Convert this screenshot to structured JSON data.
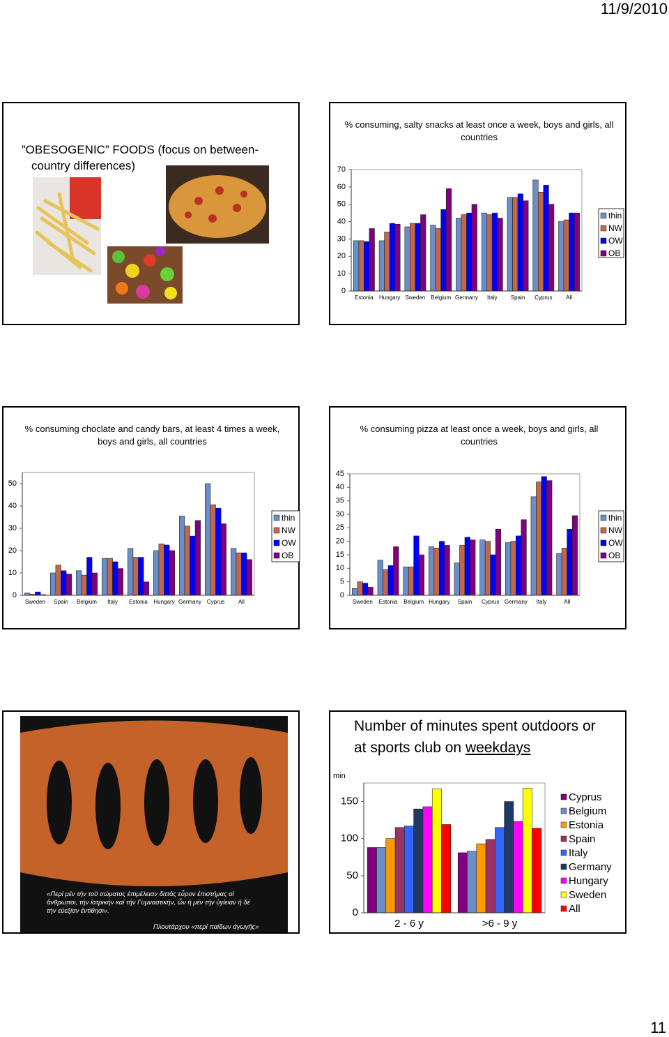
{
  "date": "11/9/2010",
  "page_number": "11",
  "slides": [
    {
      "title": "”OBESOGENIC” FOODS (focus on between-country differences)"
    },
    {
      "caption": "«Περί μέν τήν τοῦ σώματος ἐπιμέλειαν διττάς εὗρον ἐπιστήμας οἱ ἄνθρωποι, τήν ἰατρικήν καί τήν Γυμναστικήν, ὧν ἡ μέν τήν ὑγίειαν ἡ δέ τήν εὐεξίαν ἐντίθησι».",
      "source": "Πλουτάρχου «περί παίδων ἀγωγῆς»"
    }
  ],
  "chart_data": [
    {
      "type": "bar",
      "title": "% consuming, salty snacks at least once a week, boys and girls, all countries",
      "categories": [
        "Estonia",
        "Hungary",
        "Sweden",
        "Belgium",
        "Germany",
        "Italy",
        "Spain",
        "Cyprus",
        "All"
      ],
      "series": [
        {
          "name": "thin",
          "color": "#6a8fc8",
          "values": [
            29,
            29,
            37,
            38,
            42,
            45,
            54,
            64,
            40
          ]
        },
        {
          "name": "NW",
          "color": "#c0674e",
          "values": [
            29,
            34,
            39,
            36,
            44,
            44,
            54,
            57,
            41
          ]
        },
        {
          "name": "OW",
          "color": "#0000ff",
          "values": [
            28.5,
            39,
            39,
            47,
            45,
            45,
            56,
            61,
            45
          ]
        },
        {
          "name": "OB",
          "color": "#800080",
          "values": [
            36,
            38.5,
            44,
            59,
            50,
            42,
            52,
            50,
            45
          ]
        }
      ],
      "ylim": [
        0,
        70
      ],
      "yticks": [
        0,
        10,
        20,
        30,
        40,
        50,
        60,
        70
      ],
      "grid": false,
      "legend": "right"
    },
    {
      "type": "bar",
      "title": "% consuming choclate and candy bars, at least 4 times a week, boys and girls, all countries",
      "categories": [
        "Sweden",
        "Spain",
        "Belgium",
        "Italy",
        "Estonia",
        "Hungary",
        "Germany",
        "Cyprus",
        "All"
      ],
      "series": [
        {
          "name": "thin",
          "color": "#6a8fc8",
          "values": [
            1,
            10,
            11,
            16.5,
            21,
            20,
            35.5,
            50,
            21
          ]
        },
        {
          "name": "NW",
          "color": "#c0674e",
          "values": [
            0.5,
            13.5,
            9,
            16.5,
            17,
            23,
            31,
            40.5,
            19
          ]
        },
        {
          "name": "OW",
          "color": "#0000ff",
          "values": [
            1.5,
            11,
            17,
            15,
            17,
            22.5,
            26.5,
            39,
            19
          ]
        },
        {
          "name": "OB",
          "color": "#800080",
          "values": [
            0.3,
            9.5,
            10,
            12,
            6,
            20,
            33.5,
            32,
            16
          ]
        }
      ],
      "ylim": [
        0,
        55
      ],
      "yticks": [
        0,
        10,
        20,
        30,
        40,
        50
      ],
      "grid": false,
      "legend": "right"
    },
    {
      "type": "bar",
      "title": "% consuming pizza at least once a week, boys and girls, all countries",
      "categories": [
        "Sweden",
        "Estonia",
        "Belgium",
        "Hungary",
        "Spain",
        "Cyprus",
        "Germany",
        "Italy",
        "All"
      ],
      "series": [
        {
          "name": "thin",
          "color": "#6a8fc8",
          "values": [
            2.5,
            13,
            10.5,
            18,
            12,
            20.5,
            19.5,
            36.5,
            15.5
          ]
        },
        {
          "name": "NW",
          "color": "#c0674e",
          "values": [
            5,
            9.5,
            10.5,
            17.5,
            18.5,
            20,
            20,
            42,
            17.5
          ]
        },
        {
          "name": "OW",
          "color": "#0000ff",
          "values": [
            4.5,
            11,
            22,
            20,
            21.5,
            15,
            22,
            44,
            24.5
          ]
        },
        {
          "name": "OB",
          "color": "#800080",
          "values": [
            3,
            18,
            15,
            18.5,
            20.5,
            24.5,
            28,
            42.5,
            29.5
          ]
        }
      ],
      "ylim": [
        0,
        45
      ],
      "yticks": [
        0,
        5,
        10,
        15,
        20,
        25,
        30,
        35,
        40,
        45
      ],
      "grid": false,
      "legend": "right"
    },
    {
      "type": "bar",
      "title": "Number of minutes spent outdoors or at sports club on",
      "title_underlined": "weekdays",
      "y_label": "min",
      "categories": [
        "2 - 6 y",
        ">6 - 9 y"
      ],
      "series": [
        {
          "name": "Cyprus",
          "color": "#800080",
          "values": [
            88,
            81
          ]
        },
        {
          "name": "Belgium",
          "color": "#6a8fc8",
          "values": [
            88,
            83
          ]
        },
        {
          "name": "Estonia",
          "color": "#ff9900",
          "values": [
            100,
            93
          ]
        },
        {
          "name": "Spain",
          "color": "#993366",
          "values": [
            115,
            99
          ]
        },
        {
          "name": "Italy",
          "color": "#3366ff",
          "values": [
            117,
            115
          ]
        },
        {
          "name": "Germany",
          "color": "#1f3864",
          "values": [
            140,
            150
          ]
        },
        {
          "name": "Hungary",
          "color": "#ff00ff",
          "values": [
            143,
            123
          ]
        },
        {
          "name": "Sweden",
          "color": "#ffff00",
          "values": [
            167,
            168
          ]
        },
        {
          "name": "All",
          "color": "#ff0000",
          "values": [
            119,
            114
          ]
        }
      ],
      "ylim": [
        0,
        175
      ],
      "yticks": [
        0,
        50,
        100,
        150
      ],
      "grid": false,
      "legend": "right"
    }
  ]
}
